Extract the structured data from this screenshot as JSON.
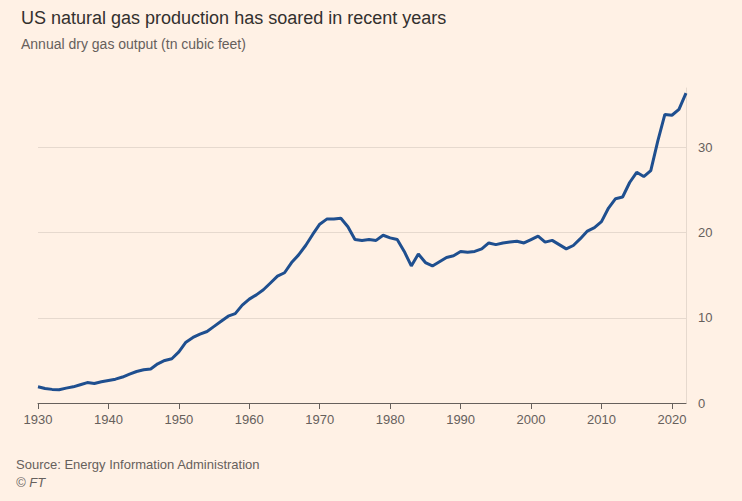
{
  "chart_data": {
    "type": "line",
    "title": "US natural gas production has soared in recent years",
    "subtitle": "Annual dry gas output (tn cubic feet)",
    "source": "Source: Energy Information Administration",
    "copyright": "© FT",
    "color": "#1f4f8f",
    "grid": true,
    "x": [
      1930,
      1931,
      1932,
      1933,
      1934,
      1935,
      1936,
      1937,
      1938,
      1939,
      1940,
      1941,
      1942,
      1943,
      1944,
      1945,
      1946,
      1947,
      1948,
      1949,
      1950,
      1951,
      1952,
      1953,
      1954,
      1955,
      1956,
      1957,
      1958,
      1959,
      1960,
      1961,
      1962,
      1963,
      1964,
      1965,
      1966,
      1967,
      1968,
      1969,
      1970,
      1971,
      1972,
      1973,
      1974,
      1975,
      1976,
      1977,
      1978,
      1979,
      1980,
      1981,
      1982,
      1983,
      1984,
      1985,
      1986,
      1987,
      1988,
      1989,
      1990,
      1991,
      1992,
      1993,
      1994,
      1995,
      1996,
      1997,
      1998,
      1999,
      2000,
      2001,
      2002,
      2003,
      2004,
      2005,
      2006,
      2007,
      2008,
      2009,
      2010,
      2011,
      2012,
      2013,
      2014,
      2015,
      2016,
      2017,
      2018,
      2019,
      2020,
      2021,
      2022
    ],
    "values": [
      1.9,
      1.7,
      1.6,
      1.55,
      1.75,
      1.9,
      2.15,
      2.4,
      2.3,
      2.5,
      2.65,
      2.8,
      3.05,
      3.4,
      3.7,
      3.9,
      4.0,
      4.6,
      5.0,
      5.2,
      6.0,
      7.15,
      7.7,
      8.1,
      8.4,
      9.0,
      9.6,
      10.2,
      10.5,
      11.5,
      12.2,
      12.7,
      13.3,
      14.1,
      14.9,
      15.3,
      16.5,
      17.4,
      18.5,
      19.8,
      21.0,
      21.6,
      21.6,
      21.7,
      20.7,
      19.2,
      19.1,
      19.2,
      19.1,
      19.7,
      19.4,
      19.2,
      17.8,
      16.1,
      17.5,
      16.5,
      16.1,
      16.6,
      17.1,
      17.3,
      17.8,
      17.7,
      17.8,
      18.1,
      18.8,
      18.6,
      18.8,
      18.9,
      19.0,
      18.8,
      19.2,
      19.6,
      18.9,
      19.1,
      18.6,
      18.1,
      18.5,
      19.3,
      20.2,
      20.6,
      21.3,
      22.9,
      24.0,
      24.2,
      25.9,
      27.1,
      26.6,
      27.3,
      30.8,
      33.9,
      33.8,
      34.5,
      36.4
    ],
    "xlim": [
      1930,
      2022
    ],
    "xticks": [
      1930,
      1940,
      1950,
      1960,
      1970,
      1980,
      1990,
      2000,
      2010,
      2020
    ],
    "ylim": [
      0,
      37
    ],
    "yticks": [
      0,
      10,
      20,
      30
    ]
  }
}
